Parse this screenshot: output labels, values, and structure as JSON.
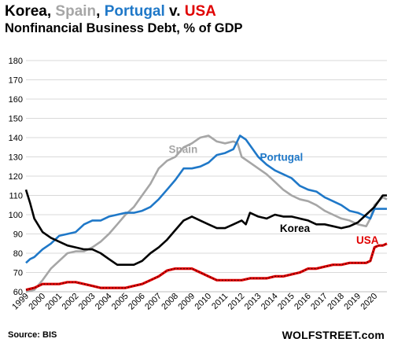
{
  "header": {
    "title_parts": [
      {
        "text": "Korea",
        "color": "#000000"
      },
      {
        "text": ", ",
        "color": "#000000"
      },
      {
        "text": "Spain",
        "color": "#a6a6a6"
      },
      {
        "text": ", ",
        "color": "#000000"
      },
      {
        "text": "Portugal",
        "color": "#1f78c8"
      },
      {
        "text": " v. ",
        "color": "#000000"
      },
      {
        "text": "USA",
        "color": "#e00000"
      }
    ],
    "subtitle": "Nonfinancial Business Debt, % of GDP"
  },
  "footer": {
    "source": "Source: BIS",
    "brand": "WOLFSTREET.com"
  },
  "chart_data": {
    "type": "line",
    "xlabel": "",
    "ylabel": "",
    "ylim": [
      60,
      180
    ],
    "yticks": [
      60,
      70,
      80,
      90,
      100,
      110,
      120,
      130,
      140,
      150,
      160,
      170,
      180
    ],
    "xlim": [
      1999.0,
      2020.75
    ],
    "xtick_labels": [
      "1999",
      "2000",
      "2001",
      "2002",
      "2003",
      "2004",
      "2005",
      "2006",
      "2007",
      "2008",
      "2009",
      "2010",
      "2011",
      "2012",
      "2013",
      "2014",
      "2015",
      "2016",
      "2017",
      "2018",
      "2019",
      "2020"
    ],
    "grid": "horizontal",
    "legend": "inline labels",
    "series": [
      {
        "name": "Spain",
        "color": "#a6a6a6",
        "label_pos": [
          2007.6,
          132
        ],
        "points": [
          [
            1999.0,
            60
          ],
          [
            1999.5,
            61
          ],
          [
            2000.0,
            66
          ],
          [
            2000.5,
            72
          ],
          [
            2001.0,
            76
          ],
          [
            2001.5,
            80
          ],
          [
            2002.0,
            81
          ],
          [
            2002.5,
            81
          ],
          [
            2003.0,
            83
          ],
          [
            2003.5,
            86
          ],
          [
            2004.0,
            90
          ],
          [
            2004.5,
            95
          ],
          [
            2005.0,
            100
          ],
          [
            2005.5,
            104
          ],
          [
            2006.0,
            110
          ],
          [
            2006.5,
            116
          ],
          [
            2007.0,
            124
          ],
          [
            2007.5,
            128
          ],
          [
            2008.0,
            130
          ],
          [
            2008.5,
            135
          ],
          [
            2009.0,
            137
          ],
          [
            2009.5,
            140
          ],
          [
            2010.0,
            141
          ],
          [
            2010.5,
            138
          ],
          [
            2011.0,
            137
          ],
          [
            2011.5,
            138
          ],
          [
            2011.75,
            137
          ],
          [
            2012.0,
            130
          ],
          [
            2012.5,
            127
          ],
          [
            2013.0,
            124
          ],
          [
            2013.5,
            121
          ],
          [
            2014.0,
            117
          ],
          [
            2014.5,
            113
          ],
          [
            2015.0,
            110
          ],
          [
            2015.5,
            108
          ],
          [
            2016.0,
            107
          ],
          [
            2016.5,
            105
          ],
          [
            2017.0,
            102
          ],
          [
            2017.5,
            100
          ],
          [
            2018.0,
            98
          ],
          [
            2018.5,
            97
          ],
          [
            2019.0,
            95
          ],
          [
            2019.5,
            94
          ],
          [
            2019.75,
            98
          ],
          [
            2020.0,
            105
          ],
          [
            2020.5,
            109
          ],
          [
            2020.75,
            108
          ]
        ]
      },
      {
        "name": "Portugal",
        "color": "#1f78c8",
        "label_pos": [
          2013.1,
          128
        ],
        "points": [
          [
            1999.0,
            75
          ],
          [
            1999.25,
            77
          ],
          [
            1999.5,
            78
          ],
          [
            2000.0,
            82
          ],
          [
            2000.5,
            85
          ],
          [
            2001.0,
            89
          ],
          [
            2001.5,
            90
          ],
          [
            2002.0,
            91
          ],
          [
            2002.5,
            95
          ],
          [
            2003.0,
            97
          ],
          [
            2003.5,
            97
          ],
          [
            2004.0,
            99
          ],
          [
            2004.5,
            100
          ],
          [
            2005.0,
            101
          ],
          [
            2005.5,
            101
          ],
          [
            2006.0,
            102
          ],
          [
            2006.5,
            104
          ],
          [
            2007.0,
            108
          ],
          [
            2007.5,
            113
          ],
          [
            2008.0,
            118
          ],
          [
            2008.5,
            124
          ],
          [
            2009.0,
            124
          ],
          [
            2009.5,
            125
          ],
          [
            2010.0,
            127
          ],
          [
            2010.5,
            131
          ],
          [
            2011.0,
            132
          ],
          [
            2011.5,
            134
          ],
          [
            2011.9,
            141
          ],
          [
            2012.25,
            139
          ],
          [
            2012.5,
            136
          ],
          [
            2013.0,
            130
          ],
          [
            2013.5,
            126
          ],
          [
            2014.0,
            123
          ],
          [
            2014.5,
            121
          ],
          [
            2015.0,
            119
          ],
          [
            2015.5,
            115
          ],
          [
            2016.0,
            113
          ],
          [
            2016.5,
            112
          ],
          [
            2017.0,
            109
          ],
          [
            2017.5,
            107
          ],
          [
            2018.0,
            105
          ],
          [
            2018.5,
            102
          ],
          [
            2019.0,
            101
          ],
          [
            2019.25,
            100
          ],
          [
            2019.5,
            99
          ],
          [
            2019.75,
            98
          ],
          [
            2020.0,
            103
          ],
          [
            2020.5,
            103
          ],
          [
            2020.75,
            103
          ]
        ]
      },
      {
        "name": "Korea",
        "color": "#000000",
        "label_pos": [
          2014.3,
          91
        ],
        "points": [
          [
            1999.0,
            113
          ],
          [
            1999.25,
            106
          ],
          [
            1999.5,
            98
          ],
          [
            2000.0,
            91
          ],
          [
            2000.5,
            88
          ],
          [
            2001.0,
            86
          ],
          [
            2001.5,
            84
          ],
          [
            2002.0,
            83
          ],
          [
            2002.5,
            82
          ],
          [
            2003.0,
            82
          ],
          [
            2003.5,
            80
          ],
          [
            2004.0,
            77
          ],
          [
            2004.5,
            74
          ],
          [
            2005.0,
            74
          ],
          [
            2005.5,
            74
          ],
          [
            2006.0,
            76
          ],
          [
            2006.5,
            80
          ],
          [
            2007.0,
            83
          ],
          [
            2007.5,
            87
          ],
          [
            2008.0,
            92
          ],
          [
            2008.5,
            97
          ],
          [
            2009.0,
            99
          ],
          [
            2009.5,
            97
          ],
          [
            2010.0,
            95
          ],
          [
            2010.5,
            93
          ],
          [
            2011.0,
            93
          ],
          [
            2011.5,
            95
          ],
          [
            2012.0,
            97
          ],
          [
            2012.25,
            95
          ],
          [
            2012.5,
            101
          ],
          [
            2013.0,
            99
          ],
          [
            2013.5,
            98
          ],
          [
            2014.0,
            100
          ],
          [
            2014.5,
            99
          ],
          [
            2015.0,
            99
          ],
          [
            2015.5,
            98
          ],
          [
            2016.0,
            97
          ],
          [
            2016.5,
            95
          ],
          [
            2017.0,
            95
          ],
          [
            2017.5,
            94
          ],
          [
            2018.0,
            93
          ],
          [
            2018.5,
            94
          ],
          [
            2019.0,
            96
          ],
          [
            2019.5,
            100
          ],
          [
            2020.0,
            104
          ],
          [
            2020.5,
            110
          ],
          [
            2020.75,
            110
          ]
        ]
      },
      {
        "name": "USA",
        "color": "#e00000",
        "label_pos": [
          2018.9,
          85
        ],
        "points": [
          [
            1999.0,
            61
          ],
          [
            1999.5,
            62
          ],
          [
            2000.0,
            64
          ],
          [
            2000.5,
            64
          ],
          [
            2001.0,
            64
          ],
          [
            2001.5,
            65
          ],
          [
            2002.0,
            65
          ],
          [
            2002.5,
            64
          ],
          [
            2003.0,
            63
          ],
          [
            2003.5,
            62
          ],
          [
            2004.0,
            62
          ],
          [
            2004.5,
            62
          ],
          [
            2005.0,
            62
          ],
          [
            2005.5,
            63
          ],
          [
            2006.0,
            64
          ],
          [
            2006.5,
            66
          ],
          [
            2007.0,
            68
          ],
          [
            2007.5,
            71
          ],
          [
            2008.0,
            72
          ],
          [
            2008.5,
            72
          ],
          [
            2009.0,
            72
          ],
          [
            2009.5,
            70
          ],
          [
            2010.0,
            68
          ],
          [
            2010.5,
            66
          ],
          [
            2011.0,
            66
          ],
          [
            2011.5,
            66
          ],
          [
            2012.0,
            66
          ],
          [
            2012.5,
            67
          ],
          [
            2013.0,
            67
          ],
          [
            2013.5,
            67
          ],
          [
            2014.0,
            68
          ],
          [
            2014.5,
            68
          ],
          [
            2015.0,
            69
          ],
          [
            2015.5,
            70
          ],
          [
            2016.0,
            72
          ],
          [
            2016.5,
            72
          ],
          [
            2017.0,
            73
          ],
          [
            2017.5,
            74
          ],
          [
            2018.0,
            74
          ],
          [
            2018.5,
            75
          ],
          [
            2019.0,
            75
          ],
          [
            2019.5,
            75
          ],
          [
            2019.75,
            76
          ],
          [
            2020.0,
            83
          ],
          [
            2020.25,
            84
          ],
          [
            2020.5,
            84
          ],
          [
            2020.75,
            85
          ]
        ]
      }
    ]
  }
}
